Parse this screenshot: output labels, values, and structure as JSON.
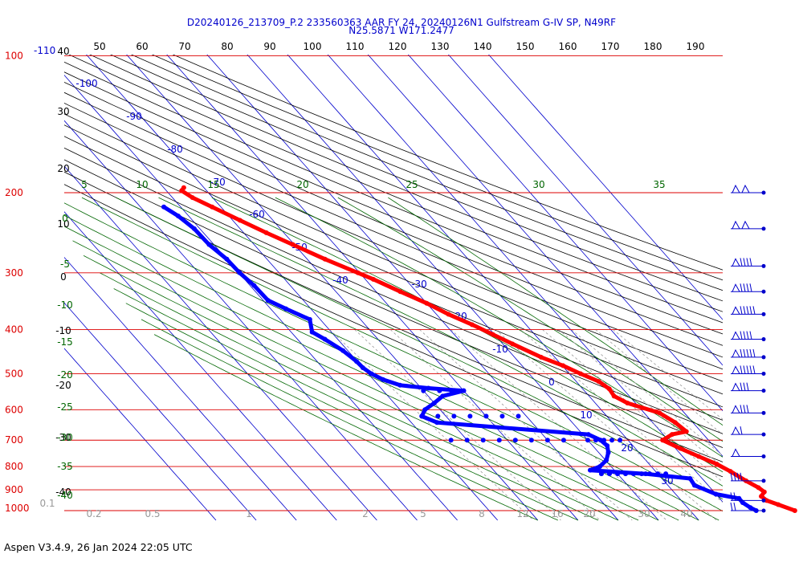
{
  "header": {
    "title_line1": "D20240126_213709_P.2 233560363 AAR FY 24, 20240126N1 Gulfstream G-IV SP, N49RF",
    "title_line2": "N25.5871 W171.2477"
  },
  "footer": {
    "version_text": "Aspen V3.4.9, 26 Jan 2024  22:05 UTC"
  },
  "colors": {
    "isobar": "#dd0000",
    "isotherm": "#0000cc",
    "dry_adiabat": "#000000",
    "moist_adiabat": "#006600",
    "mixing_ratio": "#999999",
    "temperature_trace": "#ff0000",
    "dewpoint_trace": "#0000ff"
  },
  "chart_data": {
    "type": "skew-t",
    "pressure_labels": [
      {
        "p": 100,
        "text": "100"
      },
      {
        "p": 200,
        "text": "200"
      },
      {
        "p": 300,
        "text": "300"
      },
      {
        "p": 400,
        "text": "400"
      },
      {
        "p": 500,
        "text": "500"
      },
      {
        "p": 600,
        "text": "600"
      },
      {
        "p": 700,
        "text": "700"
      },
      {
        "p": 800,
        "text": "800"
      },
      {
        "p": 900,
        "text": "900"
      },
      {
        "p": 1000,
        "text": "1000"
      }
    ],
    "pressure_top_suffix": "-110",
    "theta_top_labels": [
      "50",
      "60",
      "70",
      "80",
      "90",
      "100",
      "110",
      "120",
      "130",
      "140",
      "150",
      "160",
      "170",
      "180",
      "190"
    ],
    "left_temperature_labels": [
      "40",
      "30",
      "20",
      "10",
      "0",
      "-10",
      "-20",
      "-30",
      "-40"
    ],
    "isotherm_labels": [
      "-100",
      "-90",
      "-80",
      "-70",
      "-60",
      "-50",
      "-40",
      "-30",
      "-20",
      "-10",
      "0",
      "10",
      "20",
      "30"
    ],
    "moist_top_labels": [
      "5",
      "10",
      "15",
      "20",
      "25",
      "30",
      "35"
    ],
    "moist_left_labels": [
      "0",
      "-5",
      "-10",
      "-15",
      "-20",
      "-25",
      "-30",
      "-35",
      "-40"
    ],
    "mixing_ratio_labels": [
      "0.1",
      "0.2",
      "0.5",
      "1",
      "2",
      "5",
      "8",
      "12",
      "16",
      "20",
      "30",
      "40"
    ],
    "temperature": [
      {
        "p": 1000,
        "t": 26.0
      },
      {
        "p": 970,
        "t": 23.2
      },
      {
        "p": 950,
        "t": 21.2
      },
      {
        "p": 930,
        "t": 20.8
      },
      {
        "p": 910,
        "t": 22.5
      },
      {
        "p": 890,
        "t": 22.0
      },
      {
        "p": 860,
        "t": 20.4
      },
      {
        "p": 820,
        "t": 18.6
      },
      {
        "p": 790,
        "t": 16.8
      },
      {
        "p": 760,
        "t": 14.0
      },
      {
        "p": 730,
        "t": 11.2
      },
      {
        "p": 700,
        "t": 8.6
      },
      {
        "p": 680,
        "t": 12.2
      },
      {
        "p": 670,
        "t": 16.4
      },
      {
        "p": 640,
        "t": 15.6
      },
      {
        "p": 610,
        "t": 13.8
      },
      {
        "p": 580,
        "t": 8.0
      },
      {
        "p": 560,
        "t": 6.2
      },
      {
        "p": 540,
        "t": 6.6
      },
      {
        "p": 520,
        "t": 5.6
      },
      {
        "p": 500,
        "t": 2.8
      },
      {
        "p": 480,
        "t": 0.2
      },
      {
        "p": 460,
        "t": -3.4
      },
      {
        "p": 430,
        "t": -7.6
      },
      {
        "p": 410,
        "t": -10.4
      },
      {
        "p": 390,
        "t": -13.4
      },
      {
        "p": 370,
        "t": -17.0
      },
      {
        "p": 350,
        "t": -20.0
      },
      {
        "p": 330,
        "t": -24.0
      },
      {
        "p": 310,
        "t": -28.0
      },
      {
        "p": 300,
        "t": -30.4
      },
      {
        "p": 280,
        "t": -35.6
      },
      {
        "p": 260,
        "t": -40.4
      },
      {
        "p": 245,
        "t": -44.4
      },
      {
        "p": 230,
        "t": -48.2
      },
      {
        "p": 215,
        "t": -52.2
      },
      {
        "p": 205,
        "t": -55.0
      },
      {
        "p": 198,
        "t": -56.2
      },
      {
        "p": 195,
        "t": -55.0
      }
    ],
    "dewpoint": [
      {
        "p": 1000,
        "t": 16.4
      },
      {
        "p": 985,
        "t": 15.6
      },
      {
        "p": 960,
        "t": 14.8
      },
      {
        "p": 940,
        "t": 14.8
      },
      {
        "p": 920,
        "t": 10.0
      },
      {
        "p": 880,
        "t": 6.6
      },
      {
        "p": 850,
        "t": 7.0
      },
      {
        "p": 830,
        "t": -3.0
      },
      {
        "p": 815,
        "t": -16.0
      },
      {
        "p": 800,
        "t": -12.8
      },
      {
        "p": 775,
        "t": -9.8
      },
      {
        "p": 745,
        "t": -7.6
      },
      {
        "p": 720,
        "t": -6.4
      },
      {
        "p": 700,
        "t": -6.8
      },
      {
        "p": 680,
        "t": -8.6
      },
      {
        "p": 640,
        "t": -43.6
      },
      {
        "p": 620,
        "t": -46.0
      },
      {
        "p": 600,
        "t": -43.8
      },
      {
        "p": 580,
        "t": -40.0
      },
      {
        "p": 560,
        "t": -36.4
      },
      {
        "p": 545,
        "t": -30.0
      },
      {
        "p": 538,
        "t": -38.2
      },
      {
        "p": 530,
        "t": -44.6
      },
      {
        "p": 515,
        "t": -47.6
      },
      {
        "p": 500,
        "t": -49.2
      },
      {
        "p": 485,
        "t": -50.0
      },
      {
        "p": 470,
        "t": -50.2
      },
      {
        "p": 445,
        "t": -51.2
      },
      {
        "p": 420,
        "t": -53.2
      },
      {
        "p": 405,
        "t": -54.8
      },
      {
        "p": 380,
        "t": -52.6
      },
      {
        "p": 360,
        "t": -56.2
      },
      {
        "p": 345,
        "t": -58.8
      },
      {
        "p": 320,
        "t": -59.0
      },
      {
        "p": 300,
        "t": -59.8
      },
      {
        "p": 280,
        "t": -60.0
      },
      {
        "p": 260,
        "t": -61.2
      },
      {
        "p": 240,
        "t": -61.4
      },
      {
        "p": 225,
        "t": -62.6
      },
      {
        "p": 215,
        "t": -64.2
      }
    ],
    "dewpoint_scatter_rows": [
      {
        "p": 700,
        "t": [
          -44,
          -40,
          -36,
          -32,
          -28,
          -24,
          -20,
          -16,
          -10,
          -8,
          -6,
          -4,
          -2
        ]
      },
      {
        "p": 620,
        "t": [
          -46,
          -42,
          -38,
          -34,
          -30,
          -26,
          -22
        ]
      },
      {
        "p": 545,
        "t": [
          -40,
          -36,
          -33,
          -30
        ]
      },
      {
        "p": 830,
        "t": [
          -14,
          -12,
          -10,
          -8,
          -6,
          -4,
          -2,
          0,
          2
        ]
      }
    ],
    "wind_barbs": [
      {
        "p": 200,
        "glyph": "flags2"
      },
      {
        "p": 240,
        "glyph": "flags2"
      },
      {
        "p": 290,
        "glyph": "flag-barbs4"
      },
      {
        "p": 330,
        "glyph": "flag-barbs4"
      },
      {
        "p": 370,
        "glyph": "flag-barbs5"
      },
      {
        "p": 420,
        "glyph": "flag-barbs4"
      },
      {
        "p": 460,
        "glyph": "flag-barbs5"
      },
      {
        "p": 500,
        "glyph": "flag-barbs5"
      },
      {
        "p": 545,
        "glyph": "flag-barbs3"
      },
      {
        "p": 610,
        "glyph": "flag-barbs3"
      },
      {
        "p": 680,
        "glyph": "flag-barb"
      },
      {
        "p": 760,
        "glyph": "flag"
      },
      {
        "p": 860,
        "glyph": "barbs4"
      },
      {
        "p": 950,
        "glyph": "barbs2"
      },
      {
        "p": 1000,
        "glyph": "barbs2"
      }
    ]
  }
}
